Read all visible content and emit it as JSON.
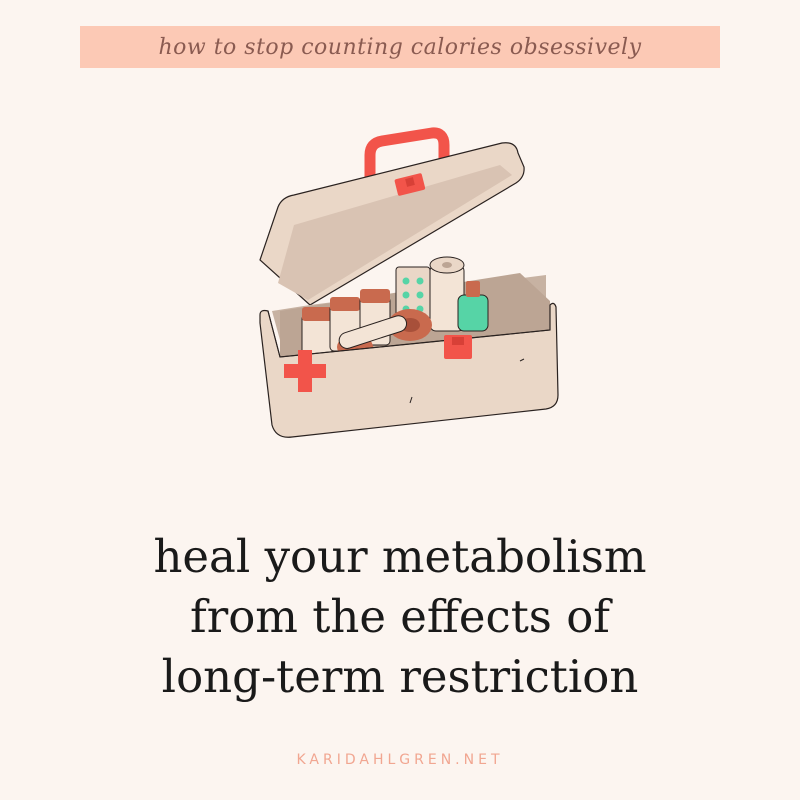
{
  "header": {
    "tagline": "how to stop counting calories obsessively"
  },
  "illustration": {
    "subject": "first-aid-kit-icon",
    "colors": {
      "box": "#ead7c7",
      "lid_inside": "#d9c3b3",
      "interior": "#c7b2a2",
      "accent_red": "#f2544a",
      "cream": "#f3e4d6",
      "terracotta": "#c96a4e",
      "mint": "#56d4a6"
    }
  },
  "headline": {
    "line1": "heal your metabolism",
    "line2": "from the effects of",
    "line3": "long-term restriction"
  },
  "footer": {
    "url": "KARIDAHLGREN.NET"
  },
  "theme": {
    "background": "#fcf5f0",
    "banner": "#fcc9b5",
    "banner_text": "#8a5b51",
    "headline_text": "#1a1a1a",
    "url_text": "#f1a691"
  }
}
